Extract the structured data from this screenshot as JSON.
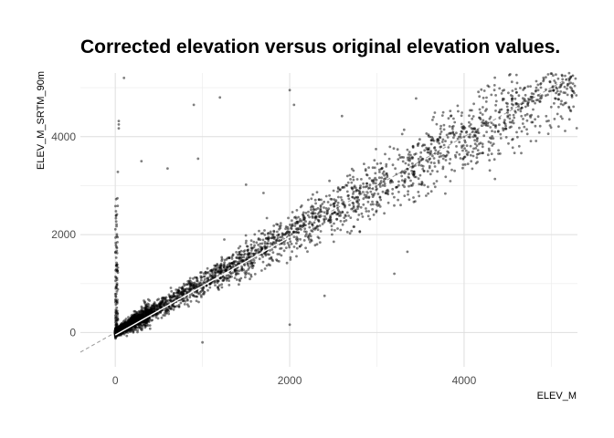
{
  "chart_data": {
    "type": "scatter",
    "title": "Corrected elevation versus original elevation values.",
    "xlabel": "ELEV_M",
    "ylabel": "ELEV_M_SRTM_90m",
    "xlim": [
      -400,
      5300
    ],
    "ylim": [
      -700,
      5300
    ],
    "x_ticks": [
      0,
      2000,
      4000
    ],
    "y_ticks": [
      0,
      2000,
      4000
    ],
    "x_minor_grid": [
      1000,
      3000,
      5000
    ],
    "y_minor_grid": [
      1000,
      3000,
      5000
    ],
    "grid": true,
    "legend": "none",
    "point_color": "#000000",
    "point_opacity": 0.5,
    "reference_line": {
      "style": "dashed",
      "color": "#999999",
      "from": [
        -400,
        -400
      ],
      "to": [
        5250,
        5250
      ]
    },
    "fit_line": {
      "color": "#ffffff",
      "from": [
        0,
        -50
      ],
      "to": [
        2000,
        1950
      ]
    },
    "bulk_trend": {
      "slope": 1.0,
      "intercept": 0,
      "noise_sd_fraction": 0.12,
      "x_max": 5300
    },
    "notable_points": [
      [
        100,
        5200
      ],
      [
        40,
        4320
      ],
      [
        40,
        4250
      ],
      [
        40,
        4170
      ],
      [
        30,
        3280
      ],
      [
        900,
        4650
      ],
      [
        1200,
        4800
      ],
      [
        2000,
        4950
      ],
      [
        2050,
        4650
      ],
      [
        2600,
        4420
      ],
      [
        300,
        3500
      ],
      [
        600,
        3350
      ],
      [
        950,
        3550
      ],
      [
        1500,
        3020
      ],
      [
        1700,
        2850
      ],
      [
        1250,
        1900
      ],
      [
        3200,
        1200
      ],
      [
        3350,
        1650
      ],
      [
        2400,
        750
      ],
      [
        1000,
        -200
      ],
      [
        2000,
        160
      ],
      [
        3100,
        2850
      ],
      [
        3700,
        3650
      ],
      [
        4050,
        3680
      ],
      [
        4150,
        3950
      ],
      [
        4350,
        5050
      ],
      [
        4600,
        4900
      ],
      [
        4850,
        4950
      ],
      [
        5050,
        5100
      ],
      [
        5200,
        5080
      ],
      [
        4400,
        4500
      ],
      [
        4000,
        4200
      ],
      [
        3650,
        4400
      ],
      [
        3450,
        4780
      ],
      [
        3900,
        3620
      ]
    ]
  }
}
